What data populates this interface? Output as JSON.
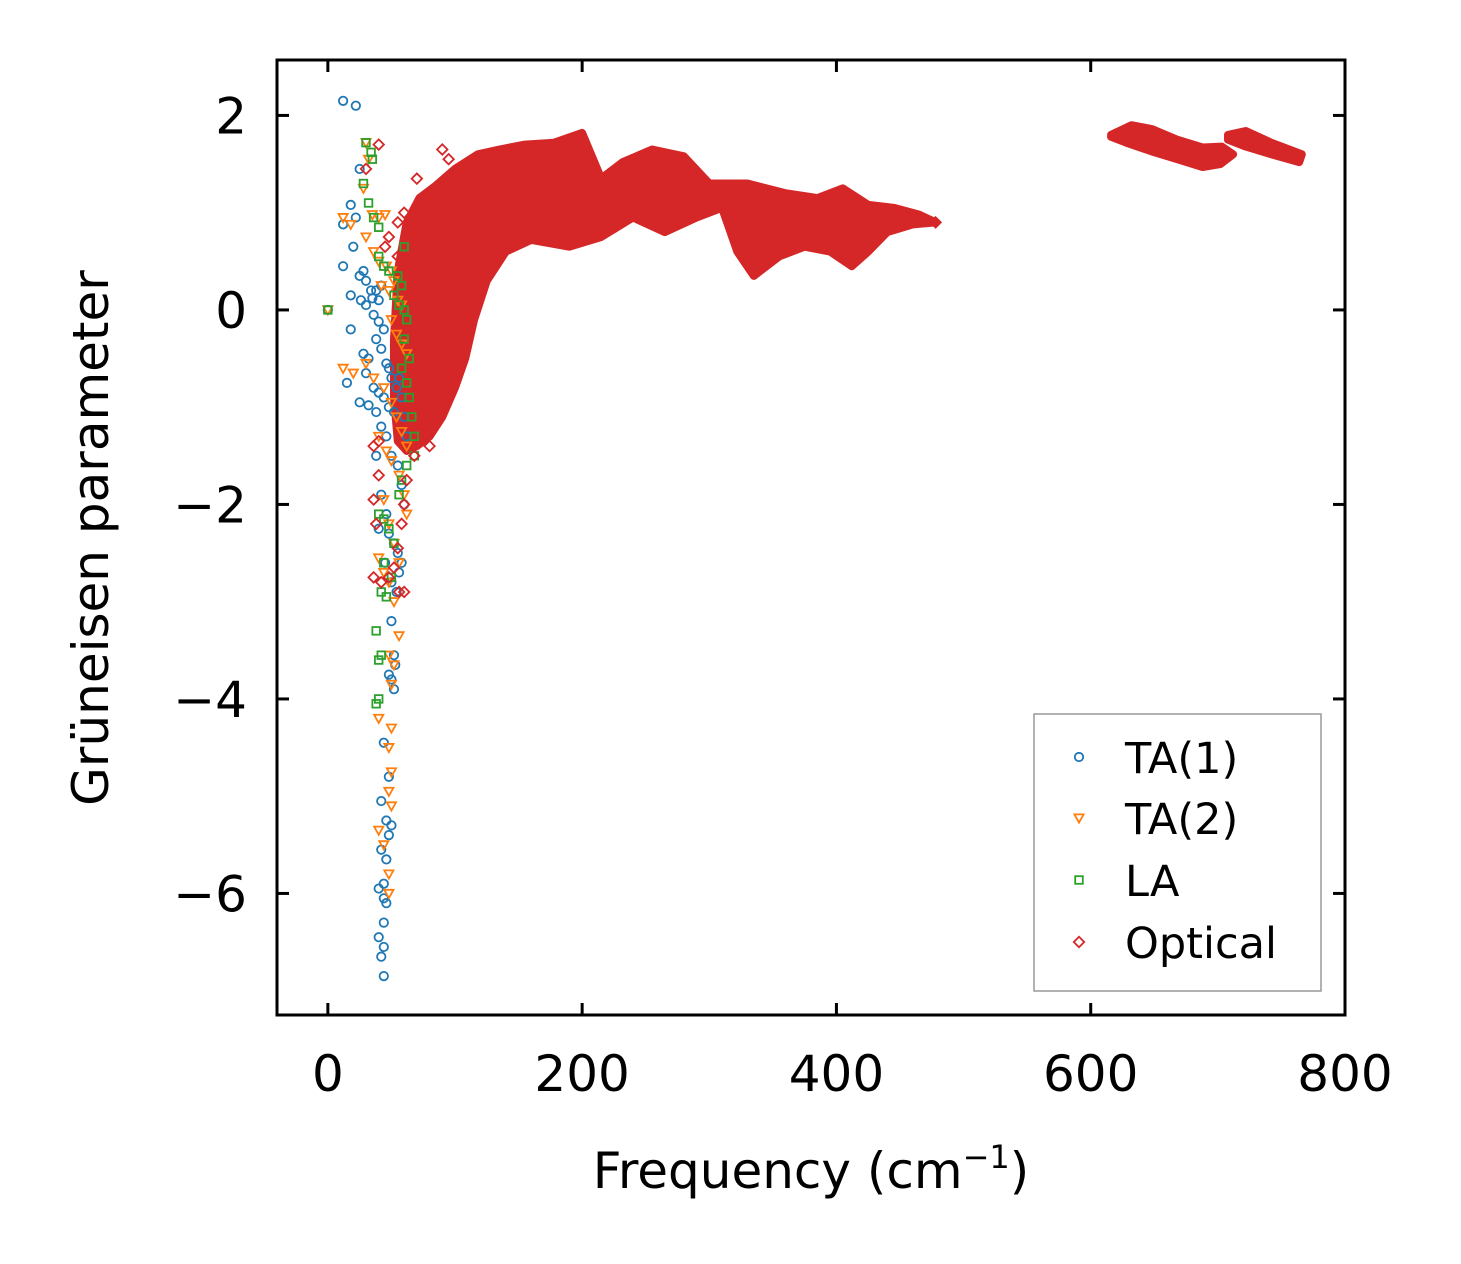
{
  "chart_data": {
    "type": "scatter",
    "xlabel": "Frequency (cm",
    "xlabel_sup": "−1",
    "xlabel_end": ")",
    "ylabel": "Grüneisen parameter",
    "xlim": [
      -40,
      800
    ],
    "ylim": [
      -7.25,
      2.57
    ],
    "xticks": [
      0,
      200,
      400,
      600,
      800
    ],
    "xtick_labels": [
      "0",
      "200",
      "400",
      "600",
      "800"
    ],
    "yticks": [
      2,
      0,
      -2,
      -4,
      -6
    ],
    "ytick_labels": [
      "2",
      "0",
      "−2",
      "−4",
      "−6"
    ],
    "legend_position": "lower-right",
    "series": [
      {
        "name": "TA(1)",
        "marker": "circle",
        "color": "#1f77b4",
        "points": [
          [
            0,
            0
          ],
          [
            12,
            2.15
          ],
          [
            22,
            2.1
          ],
          [
            18,
            1.08
          ],
          [
            25,
            1.45
          ],
          [
            22,
            0.95
          ],
          [
            12,
            0.88
          ],
          [
            20,
            0.65
          ],
          [
            12,
            0.45
          ],
          [
            28,
            0.4
          ],
          [
            25,
            0.35
          ],
          [
            30,
            0.3
          ],
          [
            34,
            0.2
          ],
          [
            18,
            0.15
          ],
          [
            26,
            0.1
          ],
          [
            30,
            0.05
          ],
          [
            35,
            0.12
          ],
          [
            38,
            0.2
          ],
          [
            40,
            0.1
          ],
          [
            42,
            0.25
          ],
          [
            36,
            -0.05
          ],
          [
            40,
            -0.12
          ],
          [
            44,
            -0.2
          ],
          [
            18,
            -0.2
          ],
          [
            28,
            -0.45
          ],
          [
            32,
            -0.5
          ],
          [
            38,
            -0.3
          ],
          [
            42,
            -0.4
          ],
          [
            46,
            -0.55
          ],
          [
            48,
            -0.6
          ],
          [
            50,
            -0.7
          ],
          [
            15,
            -0.75
          ],
          [
            30,
            -0.65
          ],
          [
            36,
            -0.8
          ],
          [
            40,
            -0.85
          ],
          [
            44,
            -0.9
          ],
          [
            48,
            -1.0
          ],
          [
            52,
            -1.05
          ],
          [
            54,
            -0.8
          ],
          [
            56,
            -0.7
          ],
          [
            58,
            -0.9
          ],
          [
            60,
            -1.1
          ],
          [
            62,
            -1.3
          ],
          [
            25,
            -0.95
          ],
          [
            32,
            -0.98
          ],
          [
            38,
            -1.05
          ],
          [
            42,
            -1.2
          ],
          [
            46,
            -1.3
          ],
          [
            50,
            -1.5
          ],
          [
            55,
            -1.6
          ],
          [
            58,
            -1.8
          ],
          [
            60,
            -2.0
          ],
          [
            38,
            -1.5
          ],
          [
            42,
            -1.9
          ],
          [
            46,
            -2.1
          ],
          [
            48,
            -2.3
          ],
          [
            52,
            -2.4
          ],
          [
            55,
            -2.5
          ],
          [
            58,
            -2.6
          ],
          [
            40,
            -2.25
          ],
          [
            45,
            -2.6
          ],
          [
            50,
            -2.8
          ],
          [
            54,
            -2.9
          ],
          [
            56,
            -2.7
          ],
          [
            50,
            -3.2
          ],
          [
            52,
            -3.55
          ],
          [
            53,
            -3.65
          ],
          [
            50,
            -3.8
          ],
          [
            52,
            -3.9
          ],
          [
            48,
            -3.75
          ],
          [
            44,
            -4.45
          ],
          [
            48,
            -4.8
          ],
          [
            42,
            -5.05
          ],
          [
            46,
            -5.25
          ],
          [
            50,
            -5.3
          ],
          [
            42,
            -5.55
          ],
          [
            46,
            -5.65
          ],
          [
            48,
            -5.4
          ],
          [
            44,
            -5.9
          ],
          [
            40,
            -5.95
          ],
          [
            44,
            -6.05
          ],
          [
            46,
            -6.1
          ],
          [
            44,
            -6.3
          ],
          [
            40,
            -6.45
          ],
          [
            44,
            -6.55
          ],
          [
            42,
            -6.65
          ],
          [
            44,
            -6.85
          ]
        ]
      },
      {
        "name": "TA(2)",
        "marker": "triangle-down",
        "color": "#ff7f0e",
        "points": [
          [
            0,
            0
          ],
          [
            30,
            1.72
          ],
          [
            28,
            1.25
          ],
          [
            32,
            1.55
          ],
          [
            12,
            0.95
          ],
          [
            18,
            0.88
          ],
          [
            35,
            0.98
          ],
          [
            40,
            0.95
          ],
          [
            45,
            0.98
          ],
          [
            30,
            0.75
          ],
          [
            36,
            0.6
          ],
          [
            40,
            0.5
          ],
          [
            46,
            0.45
          ],
          [
            50,
            0.4
          ],
          [
            52,
            0.3
          ],
          [
            48,
            0.2
          ],
          [
            55,
            0.1
          ],
          [
            58,
            0.05
          ],
          [
            42,
            0.25
          ],
          [
            50,
            -0.1
          ],
          [
            54,
            -0.25
          ],
          [
            58,
            -0.35
          ],
          [
            62,
            -0.45
          ],
          [
            12,
            -0.6
          ],
          [
            20,
            -0.65
          ],
          [
            30,
            -0.55
          ],
          [
            36,
            -0.7
          ],
          [
            44,
            -0.8
          ],
          [
            50,
            -0.95
          ],
          [
            54,
            -1.1
          ],
          [
            58,
            -1.25
          ],
          [
            62,
            -1.4
          ],
          [
            40,
            -1.3
          ],
          [
            46,
            -1.45
          ],
          [
            50,
            -1.55
          ],
          [
            56,
            -1.7
          ],
          [
            60,
            -1.9
          ],
          [
            62,
            -2.1
          ],
          [
            44,
            -1.95
          ],
          [
            48,
            -2.2
          ],
          [
            52,
            -2.4
          ],
          [
            56,
            -2.6
          ],
          [
            40,
            -2.55
          ],
          [
            44,
            -2.7
          ],
          [
            48,
            -2.8
          ],
          [
            52,
            -3.0
          ],
          [
            56,
            -3.35
          ],
          [
            48,
            -3.55
          ],
          [
            52,
            -3.65
          ],
          [
            50,
            -3.85
          ],
          [
            40,
            -4.2
          ],
          [
            50,
            -4.3
          ],
          [
            48,
            -4.5
          ],
          [
            50,
            -4.75
          ],
          [
            48,
            -4.95
          ],
          [
            50,
            -5.1
          ],
          [
            40,
            -5.35
          ],
          [
            44,
            -5.5
          ],
          [
            48,
            -5.8
          ],
          [
            48,
            -6.0
          ]
        ]
      },
      {
        "name": "LA",
        "marker": "square",
        "color": "#2ca02c",
        "points": [
          [
            0,
            0
          ],
          [
            30,
            1.72
          ],
          [
            34,
            1.62
          ],
          [
            35,
            1.55
          ],
          [
            28,
            1.3
          ],
          [
            32,
            1.1
          ],
          [
            36,
            0.95
          ],
          [
            40,
            0.85
          ],
          [
            60,
            0.65
          ],
          [
            40,
            0.55
          ],
          [
            44,
            0.45
          ],
          [
            48,
            0.4
          ],
          [
            55,
            0.35
          ],
          [
            58,
            0.25
          ],
          [
            52,
            0.15
          ],
          [
            56,
            0.05
          ],
          [
            60,
            0.0
          ],
          [
            62,
            -0.1
          ],
          [
            60,
            -0.3
          ],
          [
            64,
            -0.5
          ],
          [
            58,
            -0.6
          ],
          [
            62,
            -0.75
          ],
          [
            64,
            -0.9
          ],
          [
            66,
            -1.1
          ],
          [
            68,
            -1.3
          ],
          [
            68,
            -1.5
          ],
          [
            62,
            -1.6
          ],
          [
            58,
            -1.75
          ],
          [
            56,
            -1.9
          ],
          [
            40,
            -2.1
          ],
          [
            44,
            -2.15
          ],
          [
            48,
            -2.25
          ],
          [
            52,
            -2.4
          ],
          [
            44,
            -2.6
          ],
          [
            50,
            -2.75
          ],
          [
            42,
            -2.9
          ],
          [
            46,
            -2.95
          ],
          [
            38,
            -3.3
          ],
          [
            40,
            -3.6
          ],
          [
            42,
            -3.55
          ],
          [
            38,
            -4.05
          ],
          [
            40,
            -4.0
          ]
        ]
      },
      {
        "name": "Optical",
        "marker": "diamond",
        "color": "#d62728",
        "points": [
          [
            40,
            1.7
          ],
          [
            30,
            1.45
          ],
          [
            90,
            1.65
          ],
          [
            95,
            1.55
          ],
          [
            110,
            1.45
          ],
          [
            115,
            1.25
          ],
          [
            100,
            1.35
          ],
          [
            105,
            1.2
          ],
          [
            70,
            1.35
          ],
          [
            75,
            1.1
          ],
          [
            60,
            1.0
          ],
          [
            55,
            0.9
          ],
          [
            48,
            0.75
          ],
          [
            45,
            0.65
          ],
          [
            55,
            0.55
          ],
          [
            62,
            0.45
          ],
          [
            68,
            0.35
          ],
          [
            72,
            0.2
          ],
          [
            78,
            0.1
          ],
          [
            82,
            -0.1
          ],
          [
            86,
            -0.2
          ],
          [
            90,
            -0.35
          ],
          [
            95,
            -0.45
          ],
          [
            100,
            -0.3
          ],
          [
            110,
            -0.1
          ],
          [
            115,
            0.1
          ],
          [
            120,
            0.35
          ],
          [
            125,
            0.5
          ],
          [
            70,
            -0.6
          ],
          [
            74,
            -0.8
          ],
          [
            78,
            -1.0
          ],
          [
            74,
            -1.15
          ],
          [
            76,
            -1.3
          ],
          [
            80,
            -1.4
          ],
          [
            68,
            -1.5
          ],
          [
            62,
            -1.75
          ],
          [
            60,
            -2.0
          ],
          [
            58,
            -2.2
          ],
          [
            55,
            -2.45
          ],
          [
            52,
            -2.65
          ],
          [
            48,
            -2.75
          ],
          [
            42,
            -2.8
          ],
          [
            36,
            -2.75
          ],
          [
            38,
            -2.2
          ],
          [
            36,
            -1.95
          ],
          [
            40,
            -1.7
          ],
          [
            36,
            -1.4
          ],
          [
            40,
            -1.35
          ],
          [
            56,
            -2.9
          ],
          [
            60,
            -2.9
          ],
          [
            478,
            0.9
          ]
        ],
        "band": [
          [
            55,
            -1.35
          ],
          [
            62,
            -1.45
          ],
          [
            70,
            -1.4
          ],
          [
            80,
            -1.3
          ],
          [
            90,
            -1.1
          ],
          [
            100,
            -0.8
          ],
          [
            108,
            -0.5
          ],
          [
            115,
            -0.1
          ],
          [
            125,
            0.3
          ],
          [
            140,
            0.6
          ],
          [
            160,
            0.72
          ],
          [
            190,
            0.65
          ],
          [
            215,
            0.75
          ],
          [
            240,
            0.95
          ],
          [
            265,
            0.8
          ],
          [
            290,
            0.95
          ],
          [
            310,
            1.05
          ],
          [
            322,
            0.6
          ],
          [
            335,
            0.35
          ],
          [
            355,
            0.55
          ],
          [
            375,
            0.65
          ],
          [
            395,
            0.6
          ],
          [
            412,
            0.45
          ],
          [
            425,
            0.6
          ],
          [
            440,
            0.8
          ],
          [
            460,
            0.88
          ],
          [
            478,
            0.9
          ],
          [
            465,
            0.98
          ],
          [
            445,
            1.05
          ],
          [
            425,
            1.08
          ],
          [
            405,
            1.25
          ],
          [
            385,
            1.15
          ],
          [
            360,
            1.2
          ],
          [
            330,
            1.3
          ],
          [
            300,
            1.3
          ],
          [
            280,
            1.58
          ],
          [
            255,
            1.65
          ],
          [
            232,
            1.52
          ],
          [
            215,
            1.35
          ],
          [
            200,
            1.82
          ],
          [
            178,
            1.72
          ],
          [
            155,
            1.7
          ],
          [
            135,
            1.65
          ],
          [
            118,
            1.6
          ],
          [
            100,
            1.45
          ],
          [
            85,
            1.28
          ],
          [
            72,
            1.15
          ],
          [
            62,
            0.9
          ],
          [
            55,
            0.4
          ],
          [
            52,
            -0.3
          ],
          [
            52,
            -0.9
          ]
        ],
        "band_hi_1": [
          [
            616,
            1.8
          ],
          [
            632,
            1.9
          ],
          [
            648,
            1.86
          ],
          [
            668,
            1.75
          ],
          [
            688,
            1.67
          ],
          [
            703,
            1.68
          ],
          [
            712,
            1.6
          ],
          [
            702,
            1.5
          ],
          [
            688,
            1.47
          ],
          [
            668,
            1.55
          ],
          [
            648,
            1.63
          ],
          [
            628,
            1.72
          ],
          [
            616,
            1.78
          ]
        ],
        "band_hi_2": [
          [
            708,
            1.8
          ],
          [
            722,
            1.84
          ],
          [
            742,
            1.72
          ],
          [
            766,
            1.6
          ],
          [
            764,
            1.52
          ],
          [
            742,
            1.6
          ],
          [
            722,
            1.68
          ],
          [
            708,
            1.75
          ]
        ]
      }
    ]
  }
}
